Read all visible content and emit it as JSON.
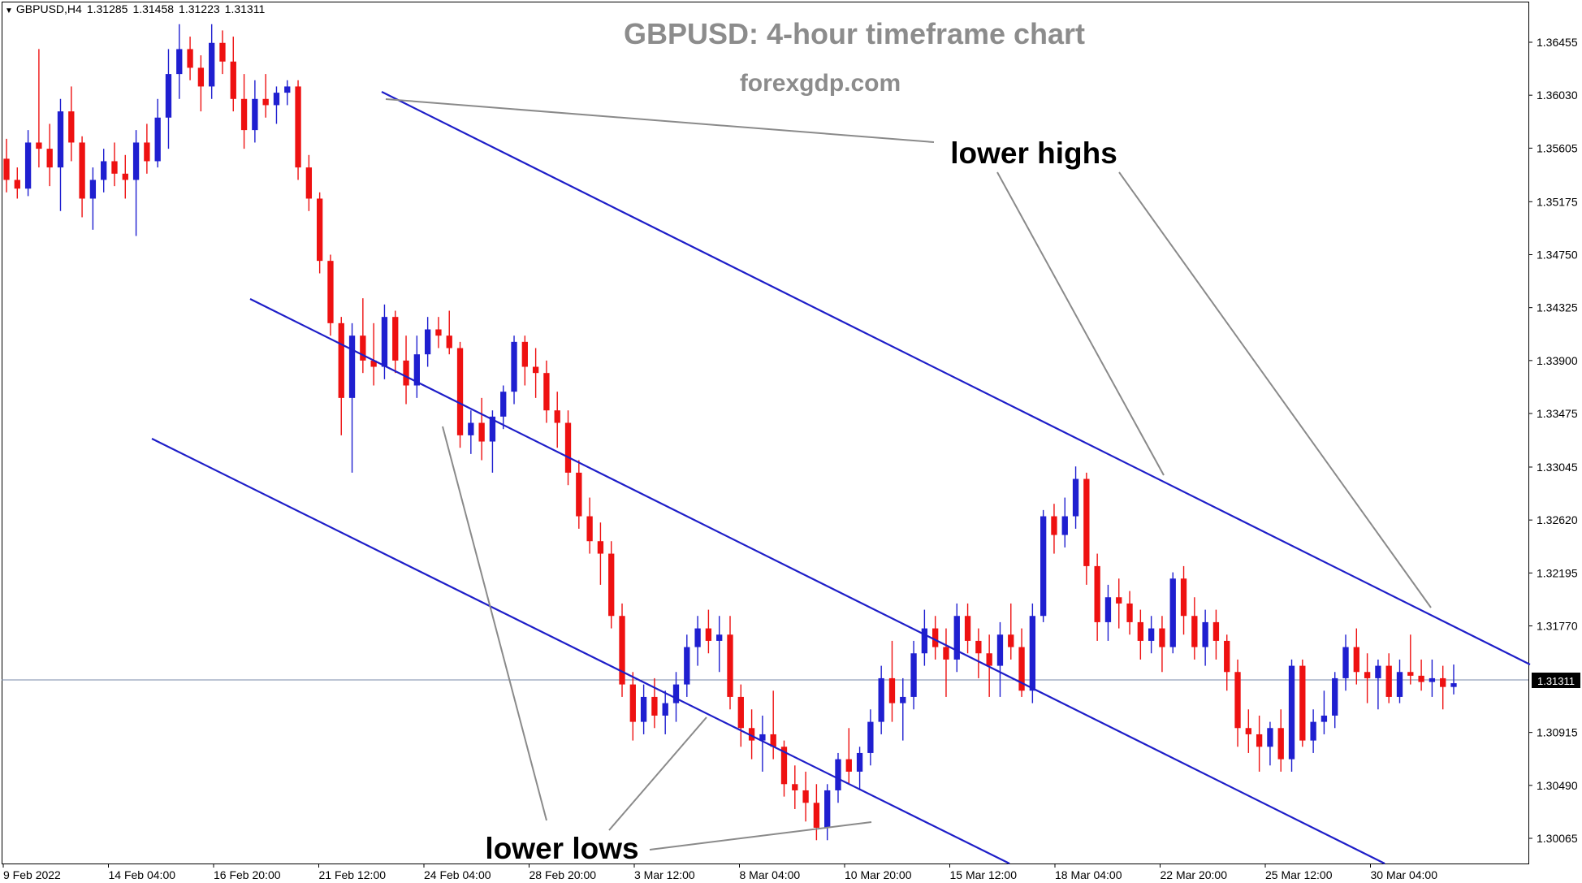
{
  "header": {
    "symbol": "GBPUSD,H4",
    "open": "1.31285",
    "high": "1.31458",
    "low": "1.31223",
    "close": "1.31311"
  },
  "chart_data": {
    "type": "candlestick",
    "title": "GBPUSD: 4-hour timeframe chart",
    "subtitle": "forexgdp.com",
    "y_ticks": [
      "1.36455",
      "1.36030",
      "1.35605",
      "1.35175",
      "1.34750",
      "1.34325",
      "1.33900",
      "1.33475",
      "1.33045",
      "1.32620",
      "1.32195",
      "1.31770",
      "1.31311",
      "1.30915",
      "1.30490",
      "1.30065"
    ],
    "ylim": [
      1.298,
      1.369
    ],
    "x_ticks": [
      "9 Feb 2022",
      "14 Feb 04:00",
      "16 Feb 20:00",
      "21 Feb 12:00",
      "24 Feb 04:00",
      "28 Feb 20:00",
      "3 Mar 12:00",
      "8 Mar 04:00",
      "10 Mar 20:00",
      "15 Mar 12:00",
      "18 Mar 04:00",
      "22 Mar 20:00",
      "25 Mar 12:00",
      "30 Mar 04:00"
    ],
    "current_price": "1.31311",
    "annotations": [
      "lower highs",
      "lower lows"
    ],
    "colors": {
      "bull": "#1f1fd0",
      "bear": "#ee1111",
      "channel": "#1e1ec8",
      "pointer": "#8a8a8a",
      "title": "#8c8c8c",
      "grid_line": "#7a8aa8"
    },
    "candles": [
      [
        1.3552,
        1.3568,
        1.3525,
        1.3535
      ],
      [
        1.3535,
        1.3545,
        1.352,
        1.3528
      ],
      [
        1.3528,
        1.3575,
        1.3522,
        1.3565
      ],
      [
        1.3565,
        1.364,
        1.3545,
        1.356
      ],
      [
        1.356,
        1.358,
        1.353,
        1.3545
      ],
      [
        1.3545,
        1.36,
        1.351,
        1.359
      ],
      [
        1.359,
        1.361,
        1.355,
        1.3565
      ],
      [
        1.3565,
        1.357,
        1.3505,
        1.352
      ],
      [
        1.352,
        1.3545,
        1.3495,
        1.3535
      ],
      [
        1.3535,
        1.356,
        1.3525,
        1.355
      ],
      [
        1.355,
        1.3565,
        1.353,
        1.354
      ],
      [
        1.354,
        1.3555,
        1.352,
        1.3535
      ],
      [
        1.3535,
        1.3575,
        1.349,
        1.3565
      ],
      [
        1.3565,
        1.358,
        1.354,
        1.355
      ],
      [
        1.355,
        1.36,
        1.3545,
        1.3585
      ],
      [
        1.3585,
        1.364,
        1.356,
        1.362
      ],
      [
        1.362,
        1.366,
        1.36,
        1.364
      ],
      [
        1.364,
        1.365,
        1.3615,
        1.3625
      ],
      [
        1.3625,
        1.3635,
        1.359,
        1.361
      ],
      [
        1.361,
        1.366,
        1.36,
        1.3645
      ],
      [
        1.3645,
        1.3655,
        1.362,
        1.363
      ],
      [
        1.363,
        1.365,
        1.359,
        1.36
      ],
      [
        1.36,
        1.362,
        1.356,
        1.3575
      ],
      [
        1.3575,
        1.3615,
        1.3565,
        1.36
      ],
      [
        1.36,
        1.362,
        1.3585,
        1.3595
      ],
      [
        1.3595,
        1.361,
        1.358,
        1.3605
      ],
      [
        1.3605,
        1.3615,
        1.3595,
        1.361
      ],
      [
        1.361,
        1.3615,
        1.3535,
        1.3545
      ],
      [
        1.3545,
        1.3555,
        1.351,
        1.352
      ],
      [
        1.352,
        1.3525,
        1.346,
        1.347
      ],
      [
        1.347,
        1.3475,
        1.341,
        1.342
      ],
      [
        1.342,
        1.3425,
        1.333,
        1.336
      ],
      [
        1.336,
        1.342,
        1.33,
        1.341
      ],
      [
        1.341,
        1.344,
        1.338,
        1.339
      ],
      [
        1.339,
        1.342,
        1.337,
        1.3385
      ],
      [
        1.3385,
        1.3435,
        1.3375,
        1.3425
      ],
      [
        1.3425,
        1.343,
        1.338,
        1.339
      ],
      [
        1.339,
        1.341,
        1.3355,
        1.337
      ],
      [
        1.337,
        1.341,
        1.336,
        1.3395
      ],
      [
        1.3395,
        1.3425,
        1.3385,
        1.3415
      ],
      [
        1.3415,
        1.3425,
        1.34,
        1.341
      ],
      [
        1.341,
        1.343,
        1.3395,
        1.34
      ],
      [
        1.34,
        1.3405,
        1.332,
        1.333
      ],
      [
        1.333,
        1.335,
        1.3315,
        1.334
      ],
      [
        1.334,
        1.336,
        1.331,
        1.3325
      ],
      [
        1.3325,
        1.335,
        1.33,
        1.3345
      ],
      [
        1.3345,
        1.337,
        1.3335,
        1.3365
      ],
      [
        1.3365,
        1.341,
        1.3355,
        1.3405
      ],
      [
        1.3405,
        1.341,
        1.337,
        1.3385
      ],
      [
        1.3385,
        1.34,
        1.336,
        1.338
      ],
      [
        1.338,
        1.339,
        1.334,
        1.335
      ],
      [
        1.335,
        1.3365,
        1.332,
        1.334
      ],
      [
        1.334,
        1.335,
        1.329,
        1.33
      ],
      [
        1.33,
        1.331,
        1.3255,
        1.3265
      ],
      [
        1.3265,
        1.328,
        1.3235,
        1.3245
      ],
      [
        1.3245,
        1.326,
        1.321,
        1.3235
      ],
      [
        1.3235,
        1.3245,
        1.3175,
        1.3185
      ],
      [
        1.3185,
        1.3195,
        1.312,
        1.313
      ],
      [
        1.313,
        1.314,
        1.3085,
        1.31
      ],
      [
        1.31,
        1.313,
        1.309,
        1.312
      ],
      [
        1.312,
        1.3135,
        1.3095,
        1.3105
      ],
      [
        1.3105,
        1.3125,
        1.309,
        1.3115
      ],
      [
        1.3115,
        1.314,
        1.31,
        1.313
      ],
      [
        1.313,
        1.317,
        1.312,
        1.316
      ],
      [
        1.316,
        1.3185,
        1.3145,
        1.3175
      ],
      [
        1.3175,
        1.319,
        1.3155,
        1.3165
      ],
      [
        1.3165,
        1.3185,
        1.314,
        1.317
      ],
      [
        1.317,
        1.3185,
        1.311,
        1.312
      ],
      [
        1.312,
        1.313,
        1.308,
        1.3095
      ],
      [
        1.3095,
        1.311,
        1.307,
        1.3085
      ],
      [
        1.3085,
        1.3105,
        1.306,
        1.309
      ],
      [
        1.309,
        1.3125,
        1.307,
        1.308
      ],
      [
        1.308,
        1.3085,
        1.304,
        1.305
      ],
      [
        1.305,
        1.3065,
        1.303,
        1.3045
      ],
      [
        1.3045,
        1.306,
        1.302,
        1.3035
      ],
      [
        1.3035,
        1.305,
        1.3005,
        1.3015
      ],
      [
        1.3015,
        1.305,
        1.3005,
        1.3045
      ],
      [
        1.3045,
        1.3075,
        1.3035,
        1.307
      ],
      [
        1.307,
        1.3095,
        1.305,
        1.306
      ],
      [
        1.306,
        1.308,
        1.3045,
        1.3075
      ],
      [
        1.3075,
        1.311,
        1.3065,
        1.31
      ],
      [
        1.31,
        1.3145,
        1.309,
        1.3135
      ],
      [
        1.3135,
        1.3165,
        1.31,
        1.3115
      ],
      [
        1.3115,
        1.3135,
        1.3085,
        1.312
      ],
      [
        1.312,
        1.3165,
        1.311,
        1.3155
      ],
      [
        1.3155,
        1.319,
        1.3145,
        1.3175
      ],
      [
        1.3175,
        1.3185,
        1.315,
        1.316
      ],
      [
        1.316,
        1.3175,
        1.312,
        1.315
      ],
      [
        1.315,
        1.3195,
        1.314,
        1.3185
      ],
      [
        1.3185,
        1.3195,
        1.3155,
        1.3165
      ],
      [
        1.3165,
        1.3175,
        1.3135,
        1.3155
      ],
      [
        1.3155,
        1.317,
        1.312,
        1.3145
      ],
      [
        1.3145,
        1.318,
        1.312,
        1.317
      ],
      [
        1.317,
        1.3195,
        1.315,
        1.316
      ],
      [
        1.316,
        1.3175,
        1.312,
        1.3125
      ],
      [
        1.3125,
        1.3195,
        1.3115,
        1.3185
      ],
      [
        1.3185,
        1.327,
        1.318,
        1.3265
      ],
      [
        1.3265,
        1.3275,
        1.3235,
        1.325
      ],
      [
        1.325,
        1.328,
        1.324,
        1.3265
      ],
      [
        1.3265,
        1.3305,
        1.3255,
        1.3295
      ],
      [
        1.3295,
        1.33,
        1.321,
        1.3225
      ],
      [
        1.3225,
        1.3235,
        1.3165,
        1.318
      ],
      [
        1.318,
        1.321,
        1.3165,
        1.32
      ],
      [
        1.32,
        1.3215,
        1.3175,
        1.3195
      ],
      [
        1.3195,
        1.3205,
        1.317,
        1.318
      ],
      [
        1.318,
        1.319,
        1.315,
        1.3165
      ],
      [
        1.3165,
        1.3185,
        1.3155,
        1.3175
      ],
      [
        1.3175,
        1.3185,
        1.314,
        1.316
      ],
      [
        1.316,
        1.322,
        1.3155,
        1.3215
      ],
      [
        1.3215,
        1.3225,
        1.317,
        1.3185
      ],
      [
        1.3185,
        1.32,
        1.315,
        1.316
      ],
      [
        1.316,
        1.319,
        1.3145,
        1.318
      ],
      [
        1.318,
        1.319,
        1.315,
        1.3165
      ],
      [
        1.3165,
        1.317,
        1.3125,
        1.314
      ],
      [
        1.314,
        1.315,
        1.308,
        1.3095
      ],
      [
        1.3095,
        1.311,
        1.3075,
        1.309
      ],
      [
        1.309,
        1.3105,
        1.306,
        1.308
      ],
      [
        1.308,
        1.31,
        1.3065,
        1.3095
      ],
      [
        1.3095,
        1.311,
        1.306,
        1.307
      ],
      [
        1.307,
        1.315,
        1.306,
        1.3145
      ],
      [
        1.3145,
        1.315,
        1.308,
        1.3085
      ],
      [
        1.3085,
        1.311,
        1.3075,
        1.31
      ],
      [
        1.31,
        1.3125,
        1.309,
        1.3105
      ],
      [
        1.3105,
        1.314,
        1.3095,
        1.3135
      ],
      [
        1.3135,
        1.317,
        1.3125,
        1.316
      ],
      [
        1.316,
        1.3175,
        1.313,
        1.314
      ],
      [
        1.314,
        1.3155,
        1.3115,
        1.3135
      ],
      [
        1.3135,
        1.315,
        1.311,
        1.3145
      ],
      [
        1.3145,
        1.3155,
        1.3115,
        1.312
      ],
      [
        1.312,
        1.315,
        1.3115,
        1.314
      ],
      [
        1.314,
        1.317,
        1.313,
        1.3137
      ],
      [
        1.3137,
        1.315,
        1.3125,
        1.3132
      ],
      [
        1.3132,
        1.315,
        1.312,
        1.3135
      ],
      [
        1.3135,
        1.3145,
        1.311,
        1.3128
      ],
      [
        1.3128,
        1.3146,
        1.3122,
        1.3131
      ]
    ]
  }
}
